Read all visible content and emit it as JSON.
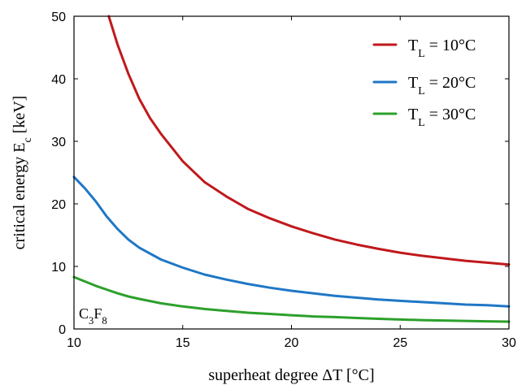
{
  "chart_data": {
    "type": "line",
    "xlabel": "superheat degree ΔT [°C]",
    "ylabel": "critical energy E_c [keV]",
    "xlim": [
      10,
      30
    ],
    "ylim": [
      0,
      50
    ],
    "xticks": [
      10,
      15,
      20,
      25,
      30
    ],
    "yticks": [
      0,
      10,
      20,
      30,
      40,
      50
    ],
    "grid": false,
    "legend_position": "top-right",
    "annotation": "C3F8",
    "series": [
      {
        "name": "T_L = 10°C",
        "color": "#c0191c",
        "x": [
          11.6,
          12,
          12.5,
          13,
          13.5,
          14,
          15,
          16,
          17,
          18,
          19,
          20,
          21,
          22,
          23,
          24,
          25,
          26,
          27,
          28,
          29,
          30
        ],
        "y": [
          50,
          45.5,
          40.8,
          36.8,
          33.7,
          31.2,
          26.8,
          23.5,
          21.2,
          19.2,
          17.7,
          16.4,
          15.3,
          14.3,
          13.5,
          12.8,
          12.2,
          11.7,
          11.3,
          10.9,
          10.6,
          10.3
        ]
      },
      {
        "name": "T_L = 20°C",
        "color": "#1f77c6",
        "x": [
          10,
          10.5,
          11,
          11.5,
          12,
          12.5,
          13,
          14,
          15,
          16,
          17,
          18,
          19,
          20,
          21,
          22,
          23,
          24,
          25,
          26,
          27,
          28,
          29,
          30
        ],
        "y": [
          24.3,
          22.5,
          20.4,
          18.0,
          16.0,
          14.3,
          13.0,
          11.1,
          9.8,
          8.7,
          7.9,
          7.2,
          6.6,
          6.1,
          5.7,
          5.3,
          5.0,
          4.7,
          4.5,
          4.3,
          4.1,
          3.9,
          3.8,
          3.6
        ]
      },
      {
        "name": "T_L = 30°C",
        "color": "#2ca02c",
        "x": [
          10,
          10.5,
          11,
          11.5,
          12,
          12.5,
          13,
          14,
          15,
          16,
          17,
          18,
          19,
          20,
          21,
          22,
          23,
          24,
          25,
          26,
          27,
          28,
          29,
          30
        ],
        "y": [
          8.3,
          7.6,
          6.9,
          6.3,
          5.7,
          5.2,
          4.8,
          4.1,
          3.6,
          3.2,
          2.9,
          2.6,
          2.4,
          2.2,
          2.0,
          1.9,
          1.75,
          1.62,
          1.5,
          1.42,
          1.35,
          1.28,
          1.22,
          1.17
        ]
      }
    ]
  }
}
